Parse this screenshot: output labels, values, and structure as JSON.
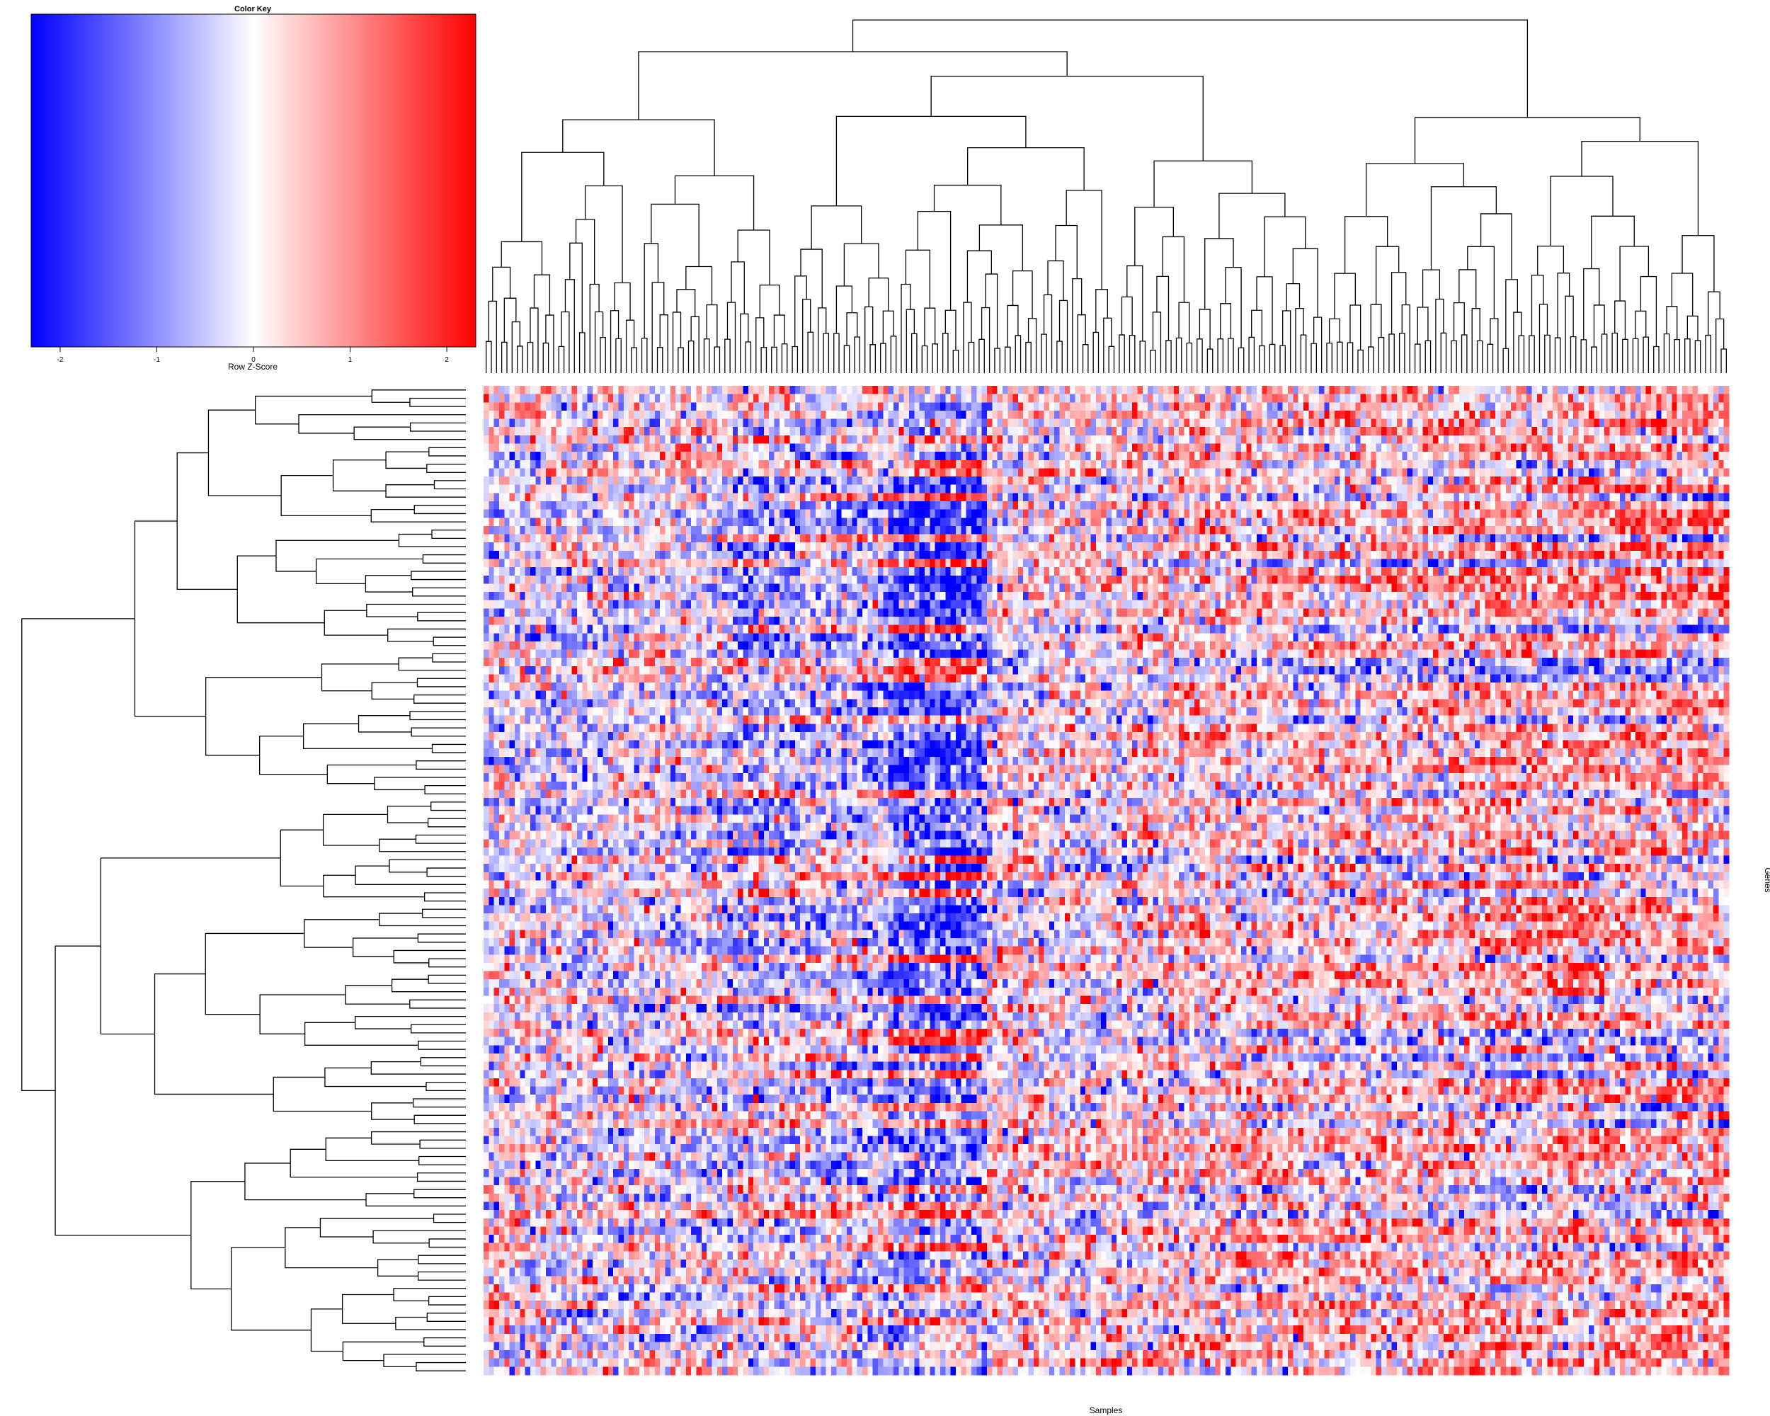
{
  "chart_data": {
    "type": "heatmap",
    "title": "",
    "xlabel": "Samples",
    "ylabel": "Genes",
    "n_columns": 240,
    "n_rows": 120,
    "color_scale": {
      "low": "#0000ff",
      "mid": "#ffffff",
      "high": "#ff0000",
      "range": [
        -2.3,
        2.3
      ]
    },
    "color_key": {
      "title": "Color Key",
      "label": "Row Z-Score",
      "ticks": [
        "-2",
        "-1",
        "0",
        "1",
        "2"
      ],
      "tick_values": [
        -2,
        -1,
        0,
        1,
        2
      ]
    },
    "col_blocks": [
      {
        "from": 0,
        "to": 45,
        "bias": -0.2
      },
      {
        "from": 46,
        "to": 77,
        "bias": -0.6
      },
      {
        "from": 78,
        "to": 96,
        "bias": -1.3
      },
      {
        "from": 97,
        "to": 125,
        "bias": 0.1
      },
      {
        "from": 126,
        "to": 185,
        "bias": 0.4
      },
      {
        "from": 186,
        "to": 239,
        "bias": 0.7
      }
    ],
    "row_blocks": [
      {
        "from": 0,
        "to": 10,
        "bias": 0.6,
        "emphasis": 0.7
      },
      {
        "from": 11,
        "to": 25,
        "bias": 0.0,
        "emphasis": 1.3
      },
      {
        "from": 26,
        "to": 55,
        "bias": -0.2,
        "emphasis": 1.0
      },
      {
        "from": 56,
        "to": 85,
        "bias": 0.0,
        "emphasis": 1.0
      },
      {
        "from": 86,
        "to": 105,
        "bias": 0.2,
        "emphasis": 0.9
      },
      {
        "from": 106,
        "to": 119,
        "bias": 0.3,
        "emphasis": 0.6
      }
    ],
    "seed": 20240611,
    "col_dendrogram": true,
    "row_dendrogram": true
  }
}
